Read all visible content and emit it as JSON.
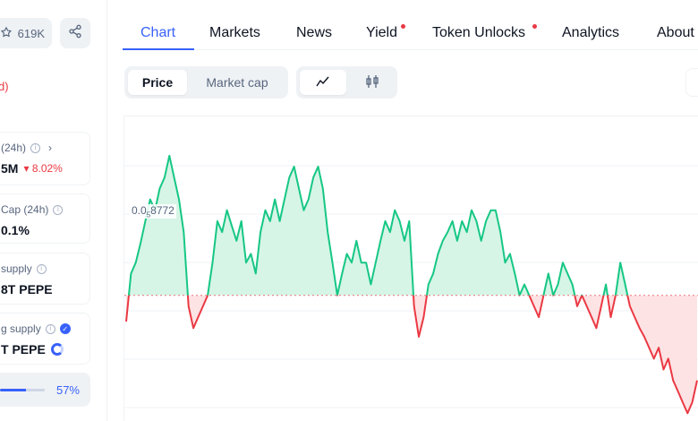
{
  "header": {
    "watchlist_count": "619K",
    "star_icon": "star-icon",
    "share_icon": "share-icon"
  },
  "left_panel": {
    "red_fragment": "d)",
    "volume": {
      "label": "(24h)",
      "value": "5M",
      "change": "8.02%",
      "change_color": "#ea3943"
    },
    "volume_market_cap": {
      "label": "Cap (24h)",
      "value": "0.1%"
    },
    "total_supply": {
      "label": "supply",
      "value": "8T PEPE"
    },
    "circulating_supply": {
      "label": "g supply",
      "value": "T PEPE"
    },
    "circulation_progress": {
      "percent_label": "57%",
      "fraction": 0.57
    }
  },
  "tabs": [
    {
      "label": "Chart",
      "active": true
    },
    {
      "label": "Markets",
      "active": false
    },
    {
      "label": "News",
      "active": false
    },
    {
      "label": "Yield",
      "active": false,
      "dot": true
    },
    {
      "label": "Token Unlocks",
      "active": false,
      "dot": true
    },
    {
      "label": "Analytics",
      "active": false
    },
    {
      "label": "About",
      "active": false
    }
  ],
  "chart_toggle": {
    "price_label": "Price",
    "market_cap_label": "Market cap",
    "line_icon": "line-chart-icon",
    "candle_icon": "candlestick-icon"
  },
  "chart_data": {
    "type": "line",
    "opening_price_label_prefix": "0.0",
    "opening_price_label_sub": "5",
    "opening_price_label_suffix": "8772",
    "colors": {
      "up": "#16c784",
      "down": "#ea3943",
      "up_fill": "#d6f5e7",
      "down_fill": "#fde3e4"
    },
    "baseline": 8.78e-06,
    "values": [
      8.66e-06,
      8.88e-06,
      8.93e-06,
      9.02e-06,
      9.12e-06,
      9.22e-06,
      9.17e-06,
      9.27e-06,
      9.32e-06,
      9.42e-06,
      9.32e-06,
      9.22e-06,
      9.07e-06,
      8.73e-06,
      8.63e-06,
      8.68e-06,
      8.73e-06,
      8.78e-06,
      8.93e-06,
      9.12e-06,
      9.07e-06,
      9.17e-06,
      9.1e-06,
      9.03e-06,
      9.12e-06,
      8.93e-06,
      8.97e-06,
      8.88e-06,
      9.07e-06,
      9.17e-06,
      9.12e-06,
      9.22e-06,
      9.12e-06,
      9.22e-06,
      9.32e-06,
      9.37e-06,
      9.27e-06,
      9.17e-06,
      9.22e-06,
      9.32e-06,
      9.37e-06,
      9.27e-06,
      9.07e-06,
      8.93e-06,
      8.78e-06,
      8.88e-06,
      8.97e-06,
      8.93e-06,
      9.03e-06,
      8.93e-06,
      8.93e-06,
      8.83e-06,
      8.93e-06,
      9.03e-06,
      9.12e-06,
      9.07e-06,
      9.17e-06,
      9.12e-06,
      9.03e-06,
      9.12e-06,
      8.73e-06,
      8.59e-06,
      8.68e-06,
      8.83e-06,
      8.88e-06,
      8.97e-06,
      9.03e-06,
      9.07e-06,
      9.12e-06,
      9.03e-06,
      9.12e-06,
      9.07e-06,
      9.17e-06,
      9.12e-06,
      9.03e-06,
      9.12e-06,
      9.17e-06,
      9.17e-06,
      9.07e-06,
      8.93e-06,
      8.97e-06,
      8.88e-06,
      8.78e-06,
      8.83e-06,
      8.78e-06,
      8.73e-06,
      8.68e-06,
      8.78e-06,
      8.88e-06,
      8.78e-06,
      8.83e-06,
      8.93e-06,
      8.88e-06,
      8.83e-06,
      8.73e-06,
      8.78e-06,
      8.73e-06,
      8.68e-06,
      8.63e-06,
      8.73e-06,
      8.83e-06,
      8.68e-06,
      8.78e-06,
      8.93e-06,
      8.83e-06,
      8.73e-06,
      8.68e-06,
      8.63e-06,
      8.59e-06,
      8.54e-06,
      8.49e-06,
      8.54e-06,
      8.44e-06,
      8.49e-06,
      8.39e-06,
      8.34e-06,
      8.29e-06,
      8.24e-06,
      8.29e-06,
      8.39e-06
    ],
    "ylim": [
      8.2e-06,
      9.6e-06
    ],
    "grid": true,
    "legend": "none"
  }
}
